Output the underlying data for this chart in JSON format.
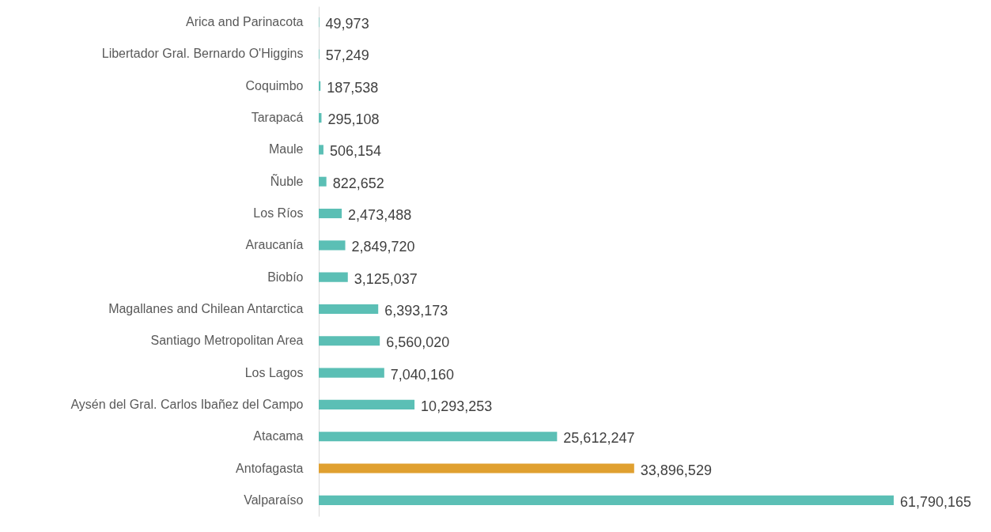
{
  "chart_data": {
    "type": "bar",
    "orientation": "horizontal",
    "tick_labels": "y",
    "value_labels": [
      "49,973",
      "57,249",
      "187,538",
      "295,108",
      "506,154",
      "822,652",
      "2,473,488",
      "2,849,720",
      "3,125,037",
      "6,393,173",
      "6,560,020",
      "7,040,160",
      "10,293,253",
      "25,612,247",
      "33,896,529",
      "61,790,165"
    ],
    "categories": [
      "Arica and Parinacota",
      "Libertador Gral. Bernardo O'Higgins",
      "Coquimbo",
      "Tarapacá",
      "Maule",
      "Ñuble",
      "Los Ríos",
      "Araucanía",
      "Biobío",
      "Magallanes and Chilean Antarctica",
      "Santiago Metropolitan Area",
      "Los Lagos",
      "Aysén del Gral. Carlos Ibañez del Campo",
      "Atacama",
      "Antofagasta",
      "Valparaíso"
    ],
    "values": [
      49973,
      57249,
      187538,
      295108,
      506154,
      822652,
      2473488,
      2849720,
      3125037,
      6393173,
      6560020,
      7040160,
      10293253,
      25612247,
      33896529,
      61790165
    ],
    "colors": [
      "#5bbfb5",
      "#5bbfb5",
      "#5bbfb5",
      "#5bbfb5",
      "#5bbfb5",
      "#5bbfb5",
      "#5bbfb5",
      "#5bbfb5",
      "#5bbfb5",
      "#5bbfb5",
      "#5bbfb5",
      "#5bbfb5",
      "#5bbfb5",
      "#5bbfb5",
      "#e0a030",
      "#5bbfb5"
    ]
  }
}
